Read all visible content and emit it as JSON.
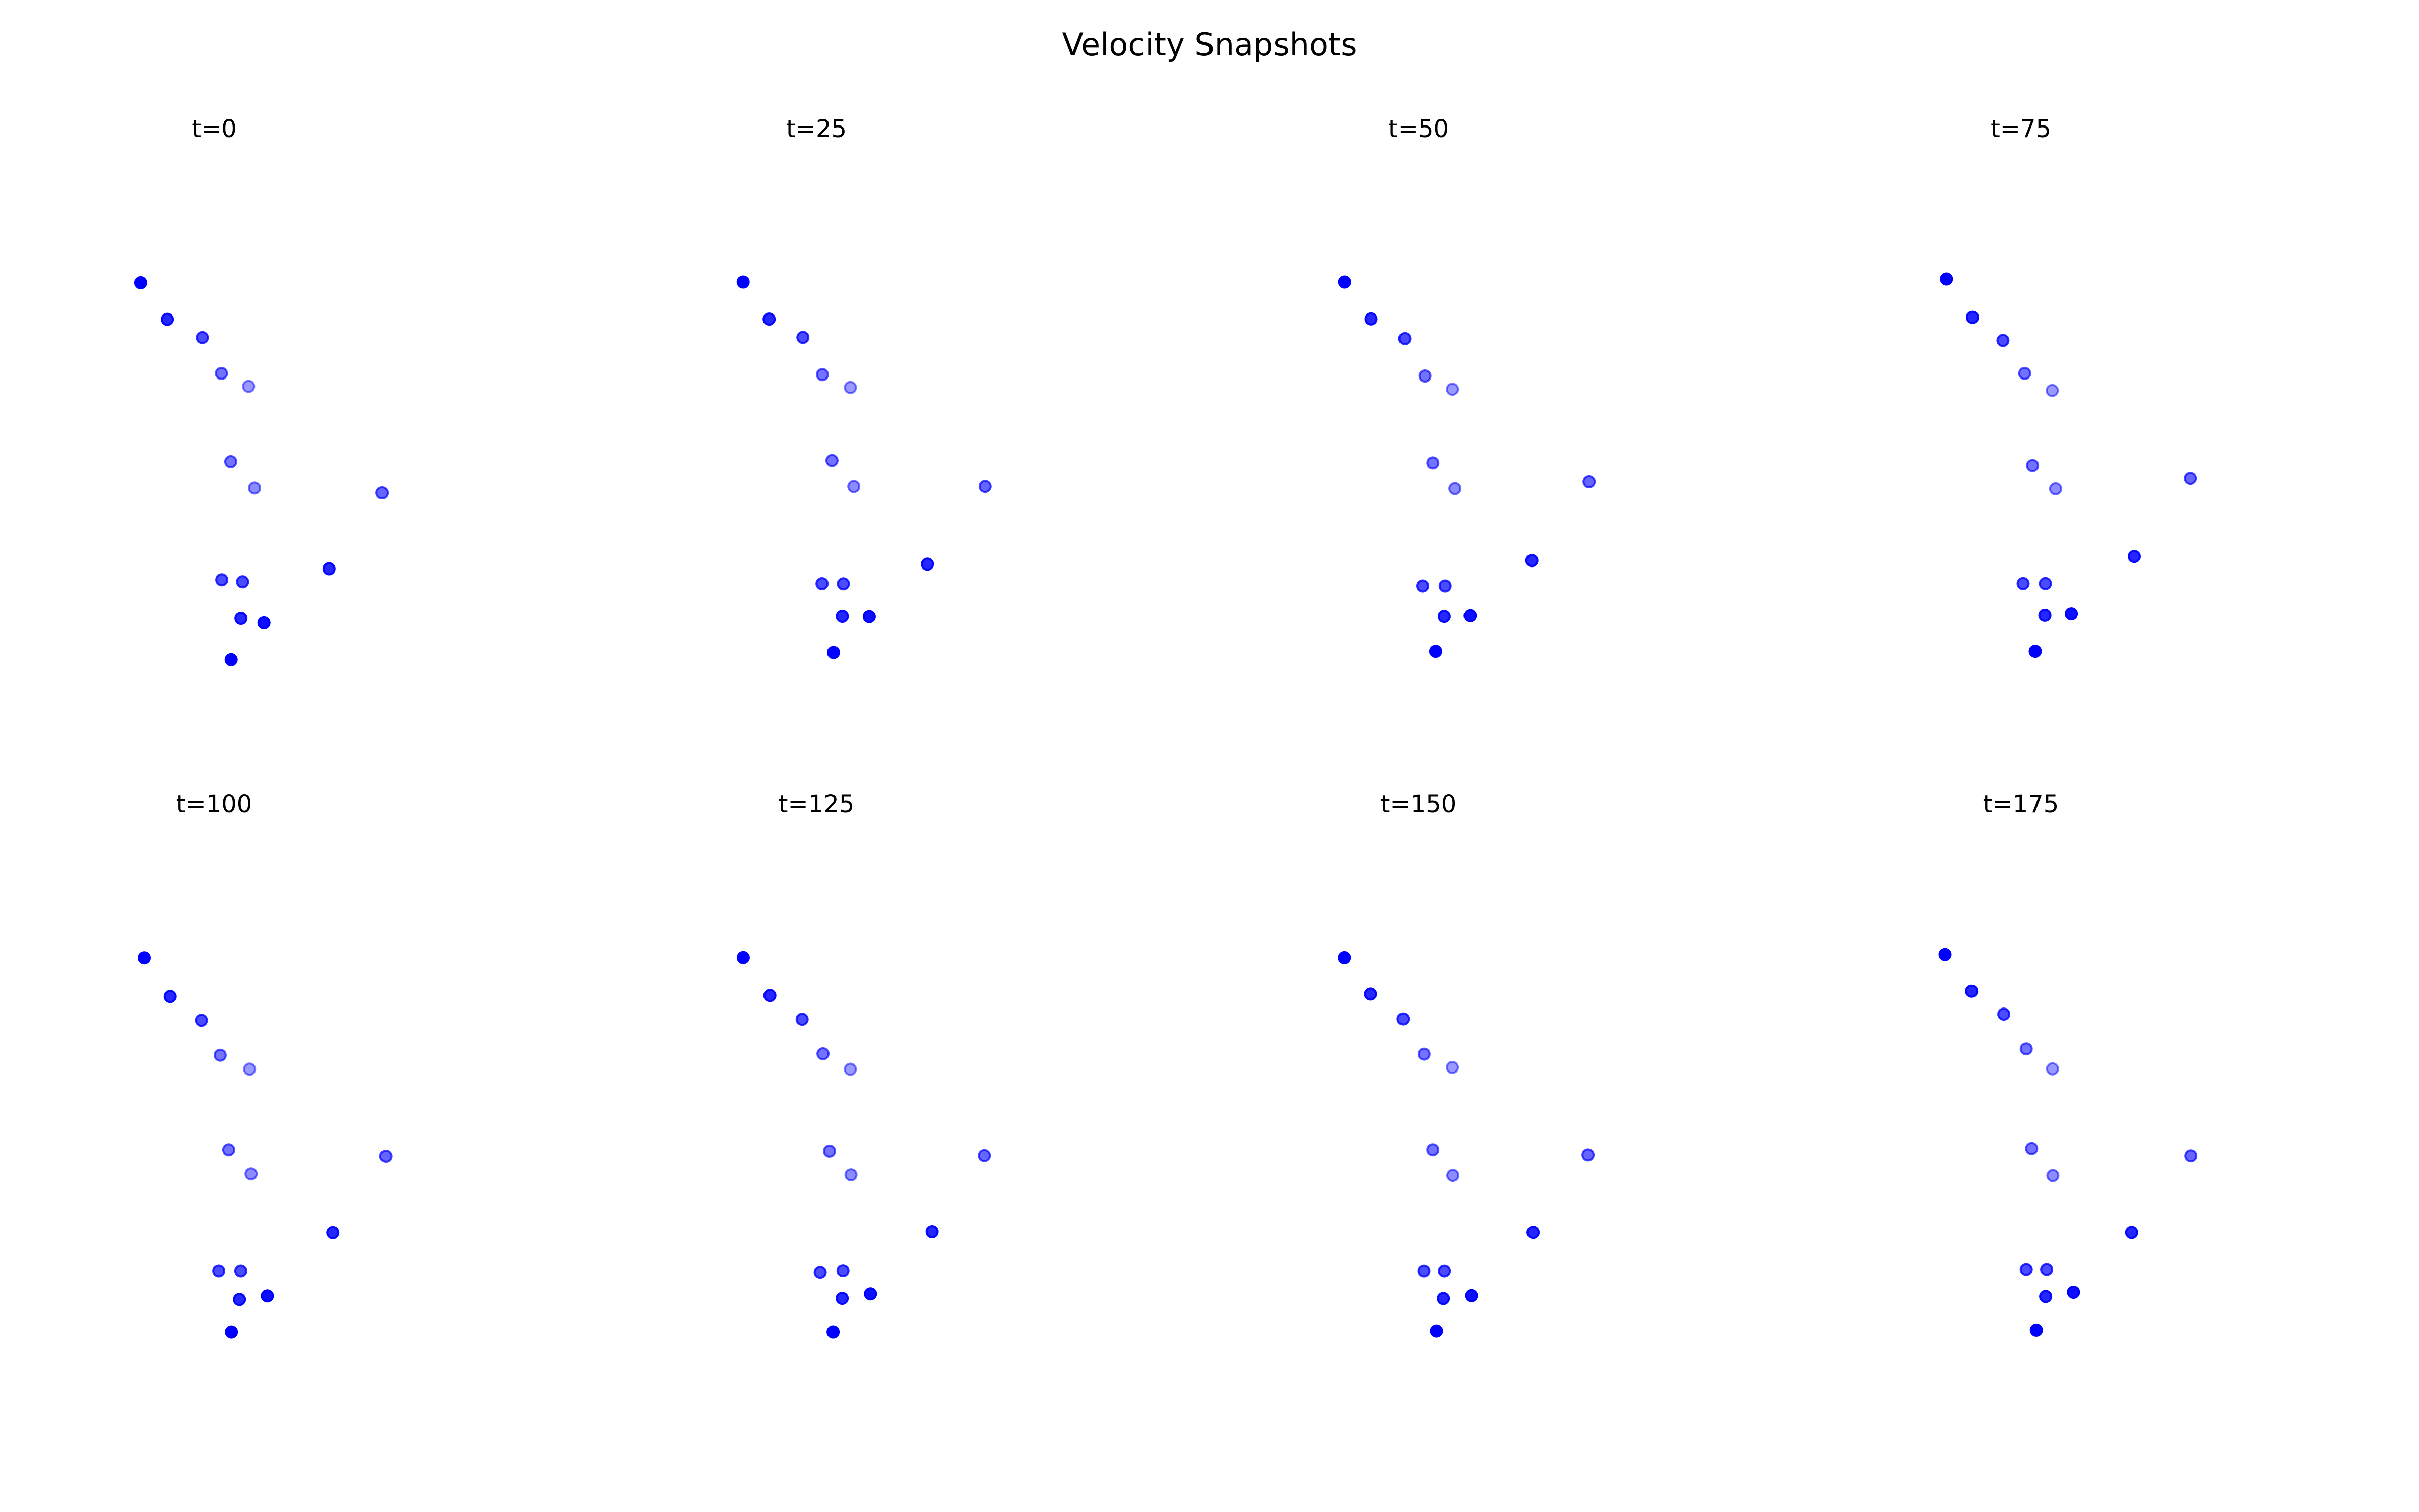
{
  "chart_data": {
    "type": "scatter",
    "title": "Velocity Snapshots",
    "layout": {
      "rows": 2,
      "cols": 4
    },
    "point_color": "#0000ff",
    "axes_visible": false,
    "grid": false,
    "xlim": [
      0,
      1
    ],
    "ylim": [
      0,
      1
    ],
    "panels": [
      {
        "title": "t=0",
        "points": [
          {
            "x": 0.0627,
            "y": 0.7769,
            "alpha": 1.0
          },
          {
            "x": 0.1309,
            "y": 0.7096,
            "alpha": 0.85
          },
          {
            "x": 0.2198,
            "y": 0.6762,
            "alpha": 0.7
          },
          {
            "x": 0.2684,
            "y": 0.6103,
            "alpha": 0.55
          },
          {
            "x": 0.3377,
            "y": 0.5865,
            "alpha": 0.4
          },
          {
            "x": 0.2922,
            "y": 0.4482,
            "alpha": 0.55
          },
          {
            "x": 0.3527,
            "y": 0.3996,
            "alpha": 0.45
          },
          {
            "x": 0.6771,
            "y": 0.3907,
            "alpha": 0.6
          },
          {
            "x": 0.5421,
            "y": 0.2514,
            "alpha": 0.85
          },
          {
            "x": 0.2694,
            "y": 0.2312,
            "alpha": 0.7
          },
          {
            "x": 0.3223,
            "y": 0.2275,
            "alpha": 0.7
          },
          {
            "x": 0.3182,
            "y": 0.1602,
            "alpha": 0.85
          },
          {
            "x": 0.3766,
            "y": 0.1519,
            "alpha": 0.95
          },
          {
            "x": 0.2932,
            "y": 0.0844,
            "alpha": 1.0
          }
        ]
      },
      {
        "title": "t=25",
        "points": [
          {
            "x": 0.0637,
            "y": 0.7782,
            "alpha": 1.0
          },
          {
            "x": 0.1298,
            "y": 0.7101,
            "alpha": 0.85
          },
          {
            "x": 0.2156,
            "y": 0.6765,
            "alpha": 0.7
          },
          {
            "x": 0.2653,
            "y": 0.6081,
            "alpha": 0.55
          },
          {
            "x": 0.3364,
            "y": 0.5844,
            "alpha": 0.4
          },
          {
            "x": 0.2896,
            "y": 0.4504,
            "alpha": 0.55
          },
          {
            "x": 0.3451,
            "y": 0.4024,
            "alpha": 0.45
          },
          {
            "x": 0.6792,
            "y": 0.4026,
            "alpha": 0.6
          },
          {
            "x": 0.5325,
            "y": 0.2599,
            "alpha": 0.85
          },
          {
            "x": 0.2643,
            "y": 0.2241,
            "alpha": 0.7
          },
          {
            "x": 0.3186,
            "y": 0.2238,
            "alpha": 0.7
          },
          {
            "x": 0.3159,
            "y": 0.1639,
            "alpha": 0.85
          },
          {
            "x": 0.3845,
            "y": 0.1633,
            "alpha": 0.95
          },
          {
            "x": 0.2935,
            "y": 0.0977,
            "alpha": 1.0
          }
        ]
      },
      {
        "title": "t=50",
        "points": [
          {
            "x": 0.0611,
            "y": 0.7782,
            "alpha": 1.0
          },
          {
            "x": 0.1288,
            "y": 0.7104,
            "alpha": 0.85
          },
          {
            "x": 0.2147,
            "y": 0.6743,
            "alpha": 0.7
          },
          {
            "x": 0.2661,
            "y": 0.6056,
            "alpha": 0.55
          },
          {
            "x": 0.3362,
            "y": 0.5813,
            "alpha": 0.4
          },
          {
            "x": 0.2863,
            "y": 0.4459,
            "alpha": 0.55
          },
          {
            "x": 0.3424,
            "y": 0.3986,
            "alpha": 0.45
          },
          {
            "x": 0.6836,
            "y": 0.4112,
            "alpha": 0.6
          },
          {
            "x": 0.5381,
            "y": 0.2664,
            "alpha": 0.85
          },
          {
            "x": 0.2602,
            "y": 0.2199,
            "alpha": 0.7
          },
          {
            "x": 0.3176,
            "y": 0.2199,
            "alpha": 0.7
          },
          {
            "x": 0.3153,
            "y": 0.1637,
            "alpha": 0.85
          },
          {
            "x": 0.3812,
            "y": 0.165,
            "alpha": 0.95
          },
          {
            "x": 0.2934,
            "y": 0.0998,
            "alpha": 1.0
          }
        ]
      },
      {
        "title": "t=75",
        "points": [
          {
            "x": 0.0606,
            "y": 0.7838,
            "alpha": 1.0
          },
          {
            "x": 0.1268,
            "y": 0.7133,
            "alpha": 0.85
          },
          {
            "x": 0.2043,
            "y": 0.6709,
            "alpha": 0.7
          },
          {
            "x": 0.2599,
            "y": 0.6103,
            "alpha": 0.55
          },
          {
            "x": 0.3297,
            "y": 0.579,
            "alpha": 0.4
          },
          {
            "x": 0.2797,
            "y": 0.4411,
            "alpha": 0.55
          },
          {
            "x": 0.3383,
            "y": 0.3982,
            "alpha": 0.45
          },
          {
            "x": 0.681,
            "y": 0.4174,
            "alpha": 0.6
          },
          {
            "x": 0.5385,
            "y": 0.2739,
            "alpha": 0.85
          },
          {
            "x": 0.2558,
            "y": 0.2243,
            "alpha": 0.7
          },
          {
            "x": 0.3123,
            "y": 0.2243,
            "alpha": 0.7
          },
          {
            "x": 0.311,
            "y": 0.1658,
            "alpha": 0.85
          },
          {
            "x": 0.3783,
            "y": 0.1684,
            "alpha": 0.95
          },
          {
            "x": 0.2866,
            "y": 0.0999,
            "alpha": 1.0
          }
        ]
      },
      {
        "title": "t=100",
        "points": [
          {
            "x": 0.0718,
            "y": 0.7776,
            "alpha": 1.0
          },
          {
            "x": 0.1381,
            "y": 0.7062,
            "alpha": 0.85
          },
          {
            "x": 0.2175,
            "y": 0.6627,
            "alpha": 0.7
          },
          {
            "x": 0.2653,
            "y": 0.5984,
            "alpha": 0.55
          },
          {
            "x": 0.3401,
            "y": 0.5729,
            "alpha": 0.4
          },
          {
            "x": 0.287,
            "y": 0.4247,
            "alpha": 0.55
          },
          {
            "x": 0.3438,
            "y": 0.3804,
            "alpha": 0.45
          },
          {
            "x": 0.6867,
            "y": 0.413,
            "alpha": 0.6
          },
          {
            "x": 0.5515,
            "y": 0.2724,
            "alpha": 0.85
          },
          {
            "x": 0.2617,
            "y": 0.2023,
            "alpha": 0.7
          },
          {
            "x": 0.3178,
            "y": 0.2023,
            "alpha": 0.7
          },
          {
            "x": 0.3144,
            "y": 0.1497,
            "alpha": 0.85
          },
          {
            "x": 0.3851,
            "y": 0.1563,
            "alpha": 0.95
          },
          {
            "x": 0.2938,
            "y": 0.0902,
            "alpha": 1.0
          }
        ]
      },
      {
        "title": "t=125",
        "points": [
          {
            "x": 0.064,
            "y": 0.7781,
            "alpha": 1.0
          },
          {
            "x": 0.1317,
            "y": 0.7081,
            "alpha": 0.85
          },
          {
            "x": 0.2137,
            "y": 0.6646,
            "alpha": 0.7
          },
          {
            "x": 0.2668,
            "y": 0.601,
            "alpha": 0.55
          },
          {
            "x": 0.3363,
            "y": 0.5727,
            "alpha": 0.4
          },
          {
            "x": 0.2833,
            "y": 0.4223,
            "alpha": 0.55
          },
          {
            "x": 0.338,
            "y": 0.3786,
            "alpha": 0.45
          },
          {
            "x": 0.6773,
            "y": 0.4142,
            "alpha": 0.6
          },
          {
            "x": 0.5444,
            "y": 0.2741,
            "alpha": 0.85
          },
          {
            "x": 0.2597,
            "y": 0.1998,
            "alpha": 0.7
          },
          {
            "x": 0.3176,
            "y": 0.2027,
            "alpha": 0.7
          },
          {
            "x": 0.3155,
            "y": 0.1518,
            "alpha": 0.85
          },
          {
            "x": 0.3876,
            "y": 0.16,
            "alpha": 0.95
          },
          {
            "x": 0.2924,
            "y": 0.0903,
            "alpha": 1.0
          }
        ]
      },
      {
        "title": "t=150",
        "points": [
          {
            "x": 0.0607,
            "y": 0.7779,
            "alpha": 1.0
          },
          {
            "x": 0.1276,
            "y": 0.7107,
            "alpha": 0.85
          },
          {
            "x": 0.2107,
            "y": 0.6652,
            "alpha": 0.7
          },
          {
            "x": 0.2639,
            "y": 0.6004,
            "alpha": 0.55
          },
          {
            "x": 0.336,
            "y": 0.576,
            "alpha": 0.4
          },
          {
            "x": 0.2861,
            "y": 0.4248,
            "alpha": 0.55
          },
          {
            "x": 0.3372,
            "y": 0.3776,
            "alpha": 0.45
          },
          {
            "x": 0.6809,
            "y": 0.4154,
            "alpha": 0.6
          },
          {
            "x": 0.5411,
            "y": 0.273,
            "alpha": 0.85
          },
          {
            "x": 0.2634,
            "y": 0.2022,
            "alpha": 0.7
          },
          {
            "x": 0.3157,
            "y": 0.2022,
            "alpha": 0.7
          },
          {
            "x": 0.3131,
            "y": 0.1515,
            "alpha": 0.85
          },
          {
            "x": 0.3841,
            "y": 0.1567,
            "alpha": 0.95
          },
          {
            "x": 0.2955,
            "y": 0.092,
            "alpha": 1.0
          }
        ]
      },
      {
        "title": "t=175",
        "points": [
          {
            "x": 0.057,
            "y": 0.7836,
            "alpha": 1.0
          },
          {
            "x": 0.1246,
            "y": 0.716,
            "alpha": 0.85
          },
          {
            "x": 0.2066,
            "y": 0.674,
            "alpha": 0.7
          },
          {
            "x": 0.2637,
            "y": 0.61,
            "alpha": 0.55
          },
          {
            "x": 0.3304,
            "y": 0.5733,
            "alpha": 0.4
          },
          {
            "x": 0.2774,
            "y": 0.4271,
            "alpha": 0.55
          },
          {
            "x": 0.3313,
            "y": 0.3773,
            "alpha": 0.45
          },
          {
            "x": 0.6823,
            "y": 0.4137,
            "alpha": 0.6
          },
          {
            "x": 0.5317,
            "y": 0.2728,
            "alpha": 0.85
          },
          {
            "x": 0.2637,
            "y": 0.205,
            "alpha": 0.7
          },
          {
            "x": 0.3155,
            "y": 0.205,
            "alpha": 0.7
          },
          {
            "x": 0.3129,
            "y": 0.1552,
            "alpha": 0.85
          },
          {
            "x": 0.3838,
            "y": 0.163,
            "alpha": 0.95
          },
          {
            "x": 0.2893,
            "y": 0.0936,
            "alpha": 1.0
          }
        ]
      }
    ]
  }
}
